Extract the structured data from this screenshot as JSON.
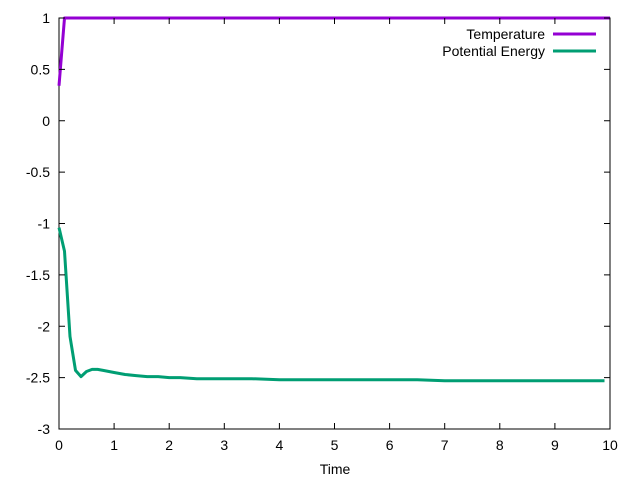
{
  "chart_data": {
    "type": "line",
    "title": "",
    "xlabel": "Time",
    "ylabel": "",
    "xlim": [
      0,
      10
    ],
    "ylim": [
      -3,
      1
    ],
    "x_ticks": [
      "0",
      "1",
      "2",
      "3",
      "4",
      "5",
      "6",
      "7",
      "8",
      "9",
      "10"
    ],
    "y_ticks": [
      "1",
      "0.5",
      "0",
      "-0.5",
      "-1",
      "-1.5",
      "-2",
      "-2.5",
      "-3"
    ],
    "grid": false,
    "legend_position": "top-right",
    "series": [
      {
        "name": "Temperature",
        "color": "#9400d3",
        "x": [
          0,
          0.1,
          0.2,
          1,
          2,
          3,
          4,
          5,
          6,
          7,
          8,
          9,
          10
        ],
        "y": [
          0.34,
          1.0,
          1.0,
          1.0,
          1.0,
          1.0,
          1.0,
          1.0,
          1.0,
          1.0,
          1.0,
          1.0,
          1.0
        ]
      },
      {
        "name": "Potential Energy",
        "color": "#009e73",
        "x": [
          0,
          0.1,
          0.2,
          0.3,
          0.4,
          0.5,
          0.6,
          0.7,
          0.8,
          1.0,
          1.2,
          1.4,
          1.6,
          1.8,
          2.0,
          2.2,
          2.5,
          2.8,
          3.0,
          3.5,
          4.0,
          4.5,
          5.0,
          5.5,
          6.0,
          6.5,
          7.0,
          7.5,
          8.0,
          8.5,
          9.0,
          9.5,
          9.9
        ],
        "y": [
          -1.04,
          -1.27,
          -2.1,
          -2.43,
          -2.49,
          -2.44,
          -2.42,
          -2.42,
          -2.43,
          -2.45,
          -2.47,
          -2.48,
          -2.49,
          -2.49,
          -2.5,
          -2.5,
          -2.51,
          -2.51,
          -2.51,
          -2.51,
          -2.52,
          -2.52,
          -2.52,
          -2.52,
          -2.52,
          -2.52,
          -2.53,
          -2.53,
          -2.53,
          -2.53,
          -2.53,
          -2.53,
          -2.53
        ]
      }
    ]
  }
}
